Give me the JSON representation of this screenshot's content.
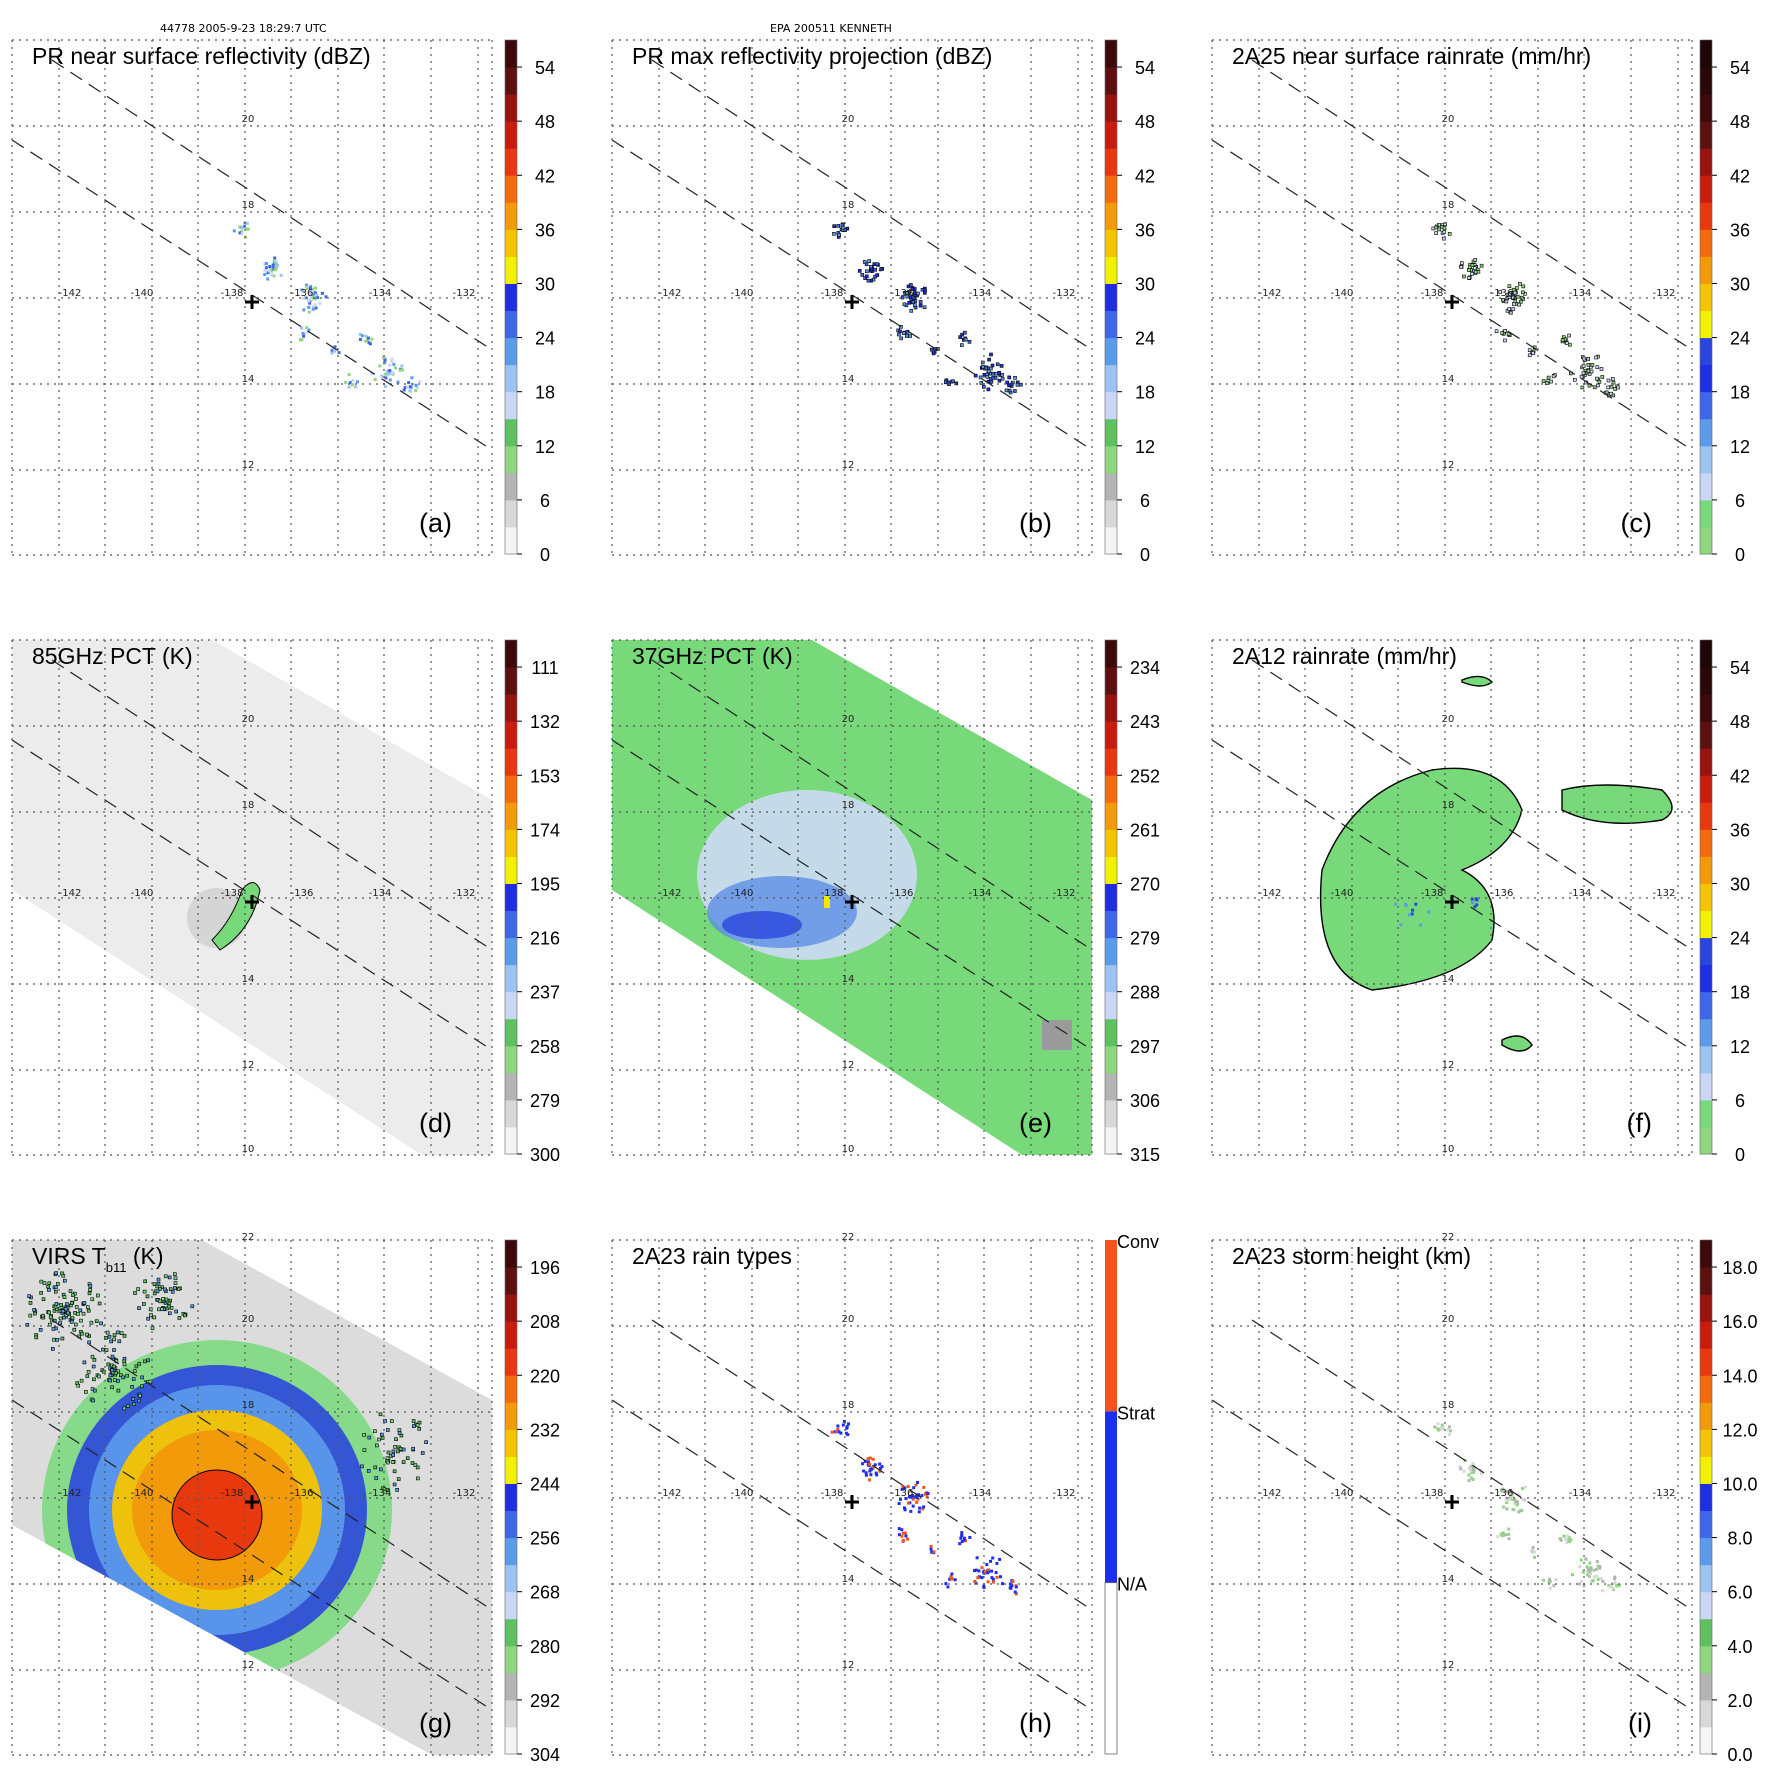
{
  "header": {
    "orbit_time": "44778 2005-9-23 18:29:7 UTC",
    "storm": "EPA 200511 KENNETH"
  },
  "coord_labels": {
    "lon": [
      "-142",
      "-140",
      "-138",
      "-136",
      "-134",
      "-132"
    ],
    "lat_top": [
      "20",
      "18",
      "14",
      "12"
    ],
    "lat_mid": [
      "20",
      "18",
      "14",
      "12",
      "10"
    ],
    "lat_bottom": [
      "22",
      "20",
      "18",
      "14",
      "12"
    ]
  },
  "colors": {
    "reflectivity_scale": [
      "#f5f5f5",
      "#d8d8d8",
      "#b4b4b4",
      "#8fd67e",
      "#5ec05e",
      "#c9d6f6",
      "#9cc3f2",
      "#5b9bec",
      "#3f68e8",
      "#1f2ee0",
      "#f1f100",
      "#f5c300",
      "#f39a0a",
      "#f26b0e",
      "#e8390e",
      "#c81d0e",
      "#951410",
      "#5e0f10",
      "#3c0a0a"
    ],
    "rain_type_conv": "#f2541a",
    "rain_type_strat": "#1d2ef0",
    "rain_type_na": "#ffffff",
    "warm_background": "#e8e8e8",
    "land_green": "#77d97a"
  },
  "panels": [
    {
      "id": "a",
      "title": "PR near surface reflectivity (dBZ)",
      "tag": "(a)",
      "coord_set": "lat_top",
      "colorbar_ticks": [
        "0",
        "6",
        "12",
        "18",
        "24",
        "30",
        "36",
        "42",
        "48",
        "54"
      ]
    },
    {
      "id": "b",
      "title": "PR max reflectivity projection (dBZ)",
      "tag": "(b)",
      "coord_set": "lat_top",
      "colorbar_ticks": [
        "0",
        "6",
        "12",
        "18",
        "24",
        "30",
        "36",
        "42",
        "48",
        "54"
      ]
    },
    {
      "id": "c",
      "title": "2A25 near surface rainrate (mm/hr)",
      "tag": "(c)",
      "coord_set": "lat_top",
      "colorbar_ticks": [
        "0",
        "6",
        "12",
        "18",
        "24",
        "30",
        "36",
        "42",
        "48",
        "54"
      ]
    },
    {
      "id": "d",
      "title": "85GHz PCT (K)",
      "tag": "(d)",
      "coord_set": "lat_mid",
      "colorbar_ticks": [
        "300",
        "279",
        "258",
        "237",
        "216",
        "195",
        "174",
        "153",
        "132",
        "111"
      ]
    },
    {
      "id": "e",
      "title": "37GHz PCT (K)",
      "tag": "(e)",
      "coord_set": "lat_mid",
      "colorbar_ticks": [
        "315",
        "306",
        "297",
        "288",
        "279",
        "270",
        "261",
        "252",
        "243",
        "234"
      ]
    },
    {
      "id": "f",
      "title": "2A12 rainrate (mm/hr)",
      "tag": "(f)",
      "coord_set": "lat_mid",
      "colorbar_ticks": [
        "0",
        "6",
        "12",
        "18",
        "24",
        "30",
        "36",
        "42",
        "48",
        "54"
      ]
    },
    {
      "id": "g",
      "title": "VIRS T",
      "title_sub": "b11",
      "title_unit": " (K)",
      "tag": "(g)",
      "coord_set": "lat_bottom",
      "colorbar_ticks": [
        "304",
        "292",
        "280",
        "268",
        "256",
        "244",
        "232",
        "220",
        "208",
        "196"
      ]
    },
    {
      "id": "h",
      "title": "2A23 rain types",
      "tag": "(h)",
      "coord_set": "lat_bottom",
      "colorbar_ticks": [
        "N/A",
        "Strat",
        "Conv"
      ]
    },
    {
      "id": "i",
      "title": "2A23 storm height (km)",
      "tag": "(i)",
      "coord_set": "lat_bottom",
      "colorbar_ticks": [
        "0.0",
        "2.0",
        "4.0",
        "6.0",
        "8.0",
        "10.0",
        "12.0",
        "14.0",
        "16.0",
        "18.0"
      ]
    }
  ]
}
